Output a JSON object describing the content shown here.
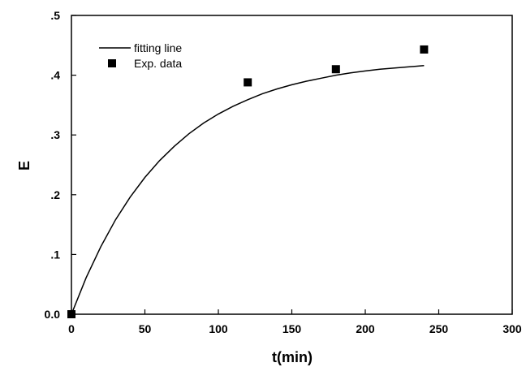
{
  "chart_data": {
    "type": "scatter",
    "title": "",
    "xlabel": "t(min)",
    "ylabel": "E",
    "xlim": [
      0,
      300
    ],
    "ylim": [
      0,
      0.5
    ],
    "xticks": [
      0,
      50,
      100,
      150,
      200,
      250,
      300
    ],
    "xtick_labels": [
      "0",
      "50",
      "100",
      "150",
      "200",
      "250",
      "300"
    ],
    "yticks": [
      0,
      0.1,
      0.2,
      0.3,
      0.4,
      0.5
    ],
    "ytick_labels": [
      "0.0",
      ".1",
      ".2",
      ".3",
      ".4",
      ".5"
    ],
    "grid": false,
    "legend_position": "top-left",
    "series": [
      {
        "name": "fitting line",
        "style": "line",
        "color": "#000000",
        "x": [
          0,
          10,
          20,
          30,
          40,
          50,
          60,
          70,
          80,
          90,
          100,
          110,
          120,
          130,
          140,
          150,
          160,
          170,
          180,
          190,
          200,
          210,
          220,
          230,
          240
        ],
        "y": [
          0,
          0.061,
          0.113,
          0.158,
          0.196,
          0.229,
          0.257,
          0.281,
          0.302,
          0.32,
          0.335,
          0.348,
          0.359,
          0.369,
          0.377,
          0.384,
          0.39,
          0.395,
          0.4,
          0.404,
          0.407,
          0.41,
          0.412,
          0.414,
          0.416
        ]
      },
      {
        "name": "Exp. data",
        "style": "marker",
        "marker": "square",
        "color": "#000000",
        "x": [
          0,
          120,
          180,
          240
        ],
        "y": [
          0,
          0.388,
          0.41,
          0.443
        ]
      }
    ]
  }
}
